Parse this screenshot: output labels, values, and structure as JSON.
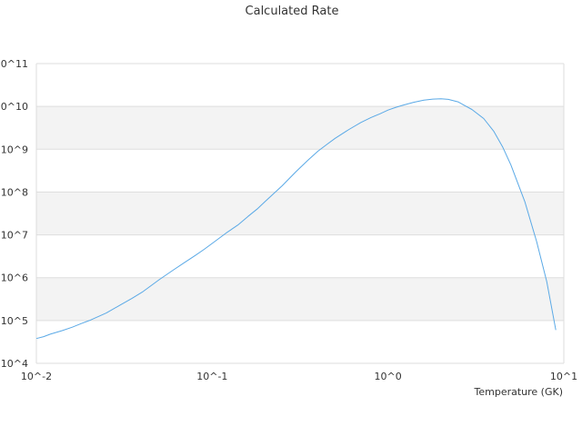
{
  "chart_data": {
    "type": "line",
    "title": "Calculated Rate",
    "xlabel": "Temperature (GK)",
    "ylabel": "",
    "x_scale": "log",
    "y_scale": "log",
    "xlim": [
      0.01,
      10
    ],
    "ylim": [
      10000,
      100000000000
    ],
    "x_ticks": [
      0.01,
      0.1,
      1,
      10
    ],
    "x_tick_labels": [
      "10^-2",
      "10^-1",
      "10^0",
      "10^1"
    ],
    "y_ticks": [
      10000,
      100000,
      1000000,
      10000000,
      100000000,
      1000000000,
      10000000000,
      100000000000
    ],
    "y_tick_labels": [
      "10^4",
      "10^5",
      "10^6",
      "10^7",
      "10^8",
      "10^9",
      "10^10",
      "10^11"
    ],
    "grid": "horizontal bands",
    "series": [
      {
        "color": "#5aa9e6",
        "x": [
          0.01,
          0.011,
          0.012,
          0.014,
          0.016,
          0.018,
          0.02,
          0.025,
          0.03,
          0.035,
          0.04,
          0.05,
          0.06,
          0.07,
          0.08,
          0.09,
          0.1,
          0.12,
          0.14,
          0.16,
          0.18,
          0.2,
          0.25,
          0.3,
          0.35,
          0.4,
          0.45,
          0.5,
          0.6,
          0.7,
          0.8,
          0.9,
          1.0,
          1.1,
          1.2,
          1.4,
          1.6,
          1.8,
          2.0,
          2.2,
          2.5,
          3.0,
          3.5,
          4.0,
          4.5,
          5.0,
          6.0,
          7.0,
          8.0,
          9.0
        ],
        "y": [
          38000,
          42000,
          48000,
          58000,
          70000,
          85000,
          100000,
          150000,
          230000,
          330000,
          460000,
          900000,
          1500000,
          2300000,
          3300000,
          4600000,
          6300000,
          11000000,
          17000000,
          27000000,
          40000000,
          60000000,
          140000000,
          300000000,
          550000000,
          900000000,
          1300000000,
          1800000000,
          2900000000,
          4200000000,
          5500000000,
          6700000000,
          8200000000,
          9400000000,
          10500000000,
          12500000000,
          14000000000,
          14800000000,
          15000000000,
          14600000000,
          12800000000,
          8500000000,
          5200000000,
          2600000000,
          1100000000,
          430000000,
          60000000,
          7000000,
          800000,
          60000
        ]
      }
    ]
  }
}
